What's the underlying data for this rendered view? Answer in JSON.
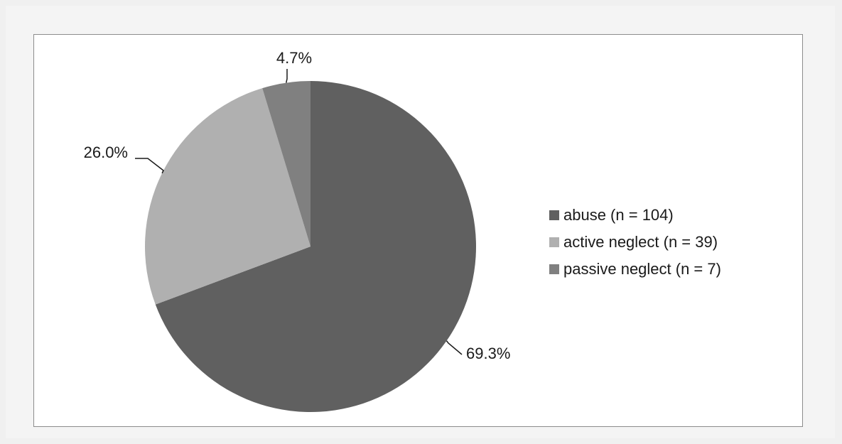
{
  "chart_data": {
    "type": "pie",
    "slices": [
      {
        "label": "abuse (n = 104)",
        "value": 69.3,
        "display": "69.3%",
        "color": "#606060"
      },
      {
        "label": "active neglect (n = 39)",
        "value": 26.0,
        "display": "26.0%",
        "color": "#b0b0b0"
      },
      {
        "label": "passive neglect (n = 7)",
        "value": 4.7,
        "display": "4.7%",
        "color": "#808080"
      }
    ],
    "start_angle_deg": 0,
    "direction": "clockwise",
    "legend_position": "right"
  }
}
